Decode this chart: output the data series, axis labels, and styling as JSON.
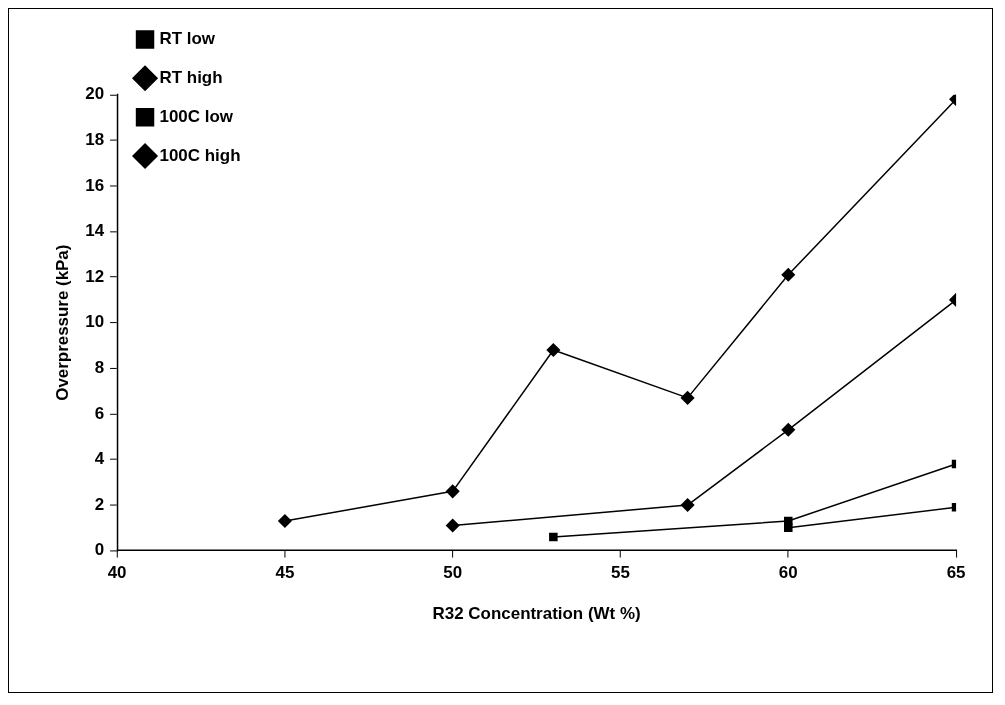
{
  "chart_data": {
    "type": "line",
    "xlabel": "R32 Concentration (Wt %)",
    "ylabel": "Overpressure (kPa)",
    "xlim": [
      40,
      65
    ],
    "xticks": [
      40,
      45,
      50,
      55,
      60,
      65
    ],
    "ylim": [
      0,
      20
    ],
    "yticks": [
      0,
      2,
      4,
      6,
      8,
      10,
      12,
      14,
      16,
      18,
      20
    ],
    "grid": false,
    "legend": "top left",
    "line_style": "solid",
    "series": [
      {
        "name": "RT low",
        "color": "#000000",
        "marker": "square",
        "x": [
          60,
          65
        ],
        "values": [
          1.0,
          1.9
        ]
      },
      {
        "name": "RT high",
        "color": "#000000",
        "marker": "diamond",
        "x": [
          50,
          57,
          60,
          65
        ],
        "values": [
          1.1,
          2.0,
          5.3,
          11.0
        ]
      },
      {
        "name": "100C low",
        "color": "#000000",
        "marker": "square",
        "x": [
          53,
          60,
          65
        ],
        "values": [
          0.6,
          1.3,
          3.8
        ]
      },
      {
        "name": "100C high",
        "color": "#000000",
        "marker": "diamond",
        "x": [
          45,
          50,
          53,
          57,
          60,
          65
        ],
        "values": [
          1.3,
          2.6,
          8.8,
          6.7,
          12.1,
          19.8
        ]
      }
    ]
  }
}
